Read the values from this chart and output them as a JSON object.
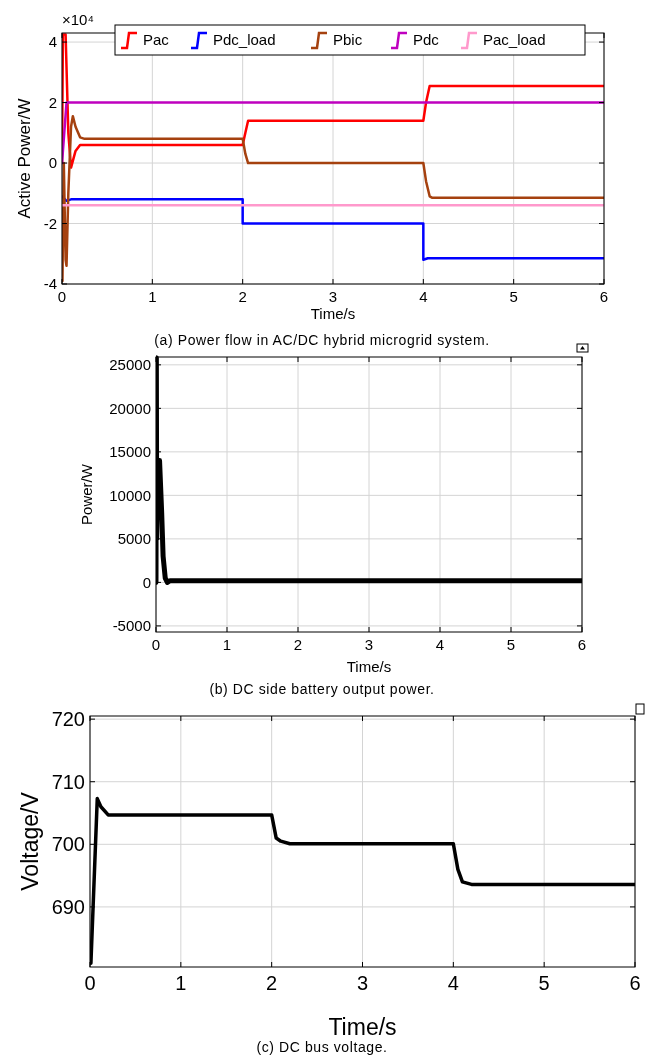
{
  "chart_data": [
    {
      "type": "line",
      "title": "(a) Power flow in AC/DC hybrid microgrid system.",
      "xlabel": "Time/s",
      "ylabel": "Active Power/W",
      "annotations": [
        "×10⁴"
      ],
      "xlim": [
        0,
        6
      ],
      "xticks": [
        0,
        1,
        2,
        3,
        4,
        5,
        6
      ],
      "ylim": [
        -4,
        4.3
      ],
      "yticks": [
        -4,
        -2,
        0,
        2,
        4
      ],
      "grid": true,
      "legend": "top",
      "series": [
        {
          "name": "Pac",
          "color": "#ff0000",
          "x": [
            0,
            0.01,
            0.04,
            0.07,
            0.1,
            0.15,
            0.2,
            0.3,
            2.0,
            2.03,
            2.06,
            4.0,
            4.03,
            4.07,
            6
          ],
          "values": [
            0,
            4.25,
            4.25,
            1,
            -0.15,
            0.4,
            0.6,
            0.6,
            0.6,
            1.0,
            1.4,
            1.4,
            2.0,
            2.55,
            2.55
          ]
        },
        {
          "name": "Pdc_load",
          "color": "#0000ff",
          "x": [
            0,
            0.05,
            0.1,
            2.0,
            2.0,
            4.0,
            4.0,
            4.05,
            6
          ],
          "values": [
            -1.1,
            -1.25,
            -1.2,
            -1.2,
            -2,
            -2,
            -3.2,
            -3.15,
            -3.15
          ]
        },
        {
          "name": "Pbic",
          "color": "#a5410f",
          "x": [
            0.005,
            0.02,
            0.04,
            0.05,
            0.07,
            0.1,
            0.12,
            0.15,
            0.2,
            0.25,
            2.0,
            2.03,
            2.06,
            4.0,
            4.03,
            4.07,
            4.1,
            6
          ],
          "values": [
            -3.9,
            0,
            -3.2,
            -3.4,
            -1,
            1.2,
            1.55,
            1.2,
            0.85,
            0.8,
            0.8,
            0.3,
            0,
            0,
            -0.6,
            -1.1,
            -1.15,
            -1.15
          ]
        },
        {
          "name": "Pdc",
          "color": "#bf00bf",
          "x": [
            0,
            0.05,
            6
          ],
          "values": [
            0,
            2,
            2
          ]
        },
        {
          "name": "Pac_load",
          "color": "#ff99cc",
          "x": [
            0,
            6
          ],
          "values": [
            -1.4,
            -1.4
          ]
        }
      ]
    },
    {
      "type": "line",
      "title": "(b) DC side battery output power.",
      "xlabel": "Time/s",
      "ylabel": "Power/W",
      "xlim": [
        0,
        6
      ],
      "xticks": [
        0,
        1,
        2,
        3,
        4,
        5,
        6
      ],
      "ylim": [
        -5700,
        25900
      ],
      "yticks": [
        -5000,
        0,
        5000,
        10000,
        15000,
        20000,
        25000
      ],
      "grid": true,
      "series": [
        {
          "color": "#000000",
          "x": [
            0,
            0.005,
            0.01,
            0.02,
            0.05,
            0.08,
            0.1,
            0.13,
            0.16,
            0.2,
            6
          ],
          "values": [
            0,
            25800,
            5000,
            14000,
            14000,
            8000,
            3000,
            500,
            0,
            200,
            200
          ]
        }
      ]
    },
    {
      "type": "line",
      "title": "(c) DC bus voltage.",
      "xlabel": "Time/s",
      "ylabel": "Voltage/V",
      "xlim": [
        0,
        6
      ],
      "xticks": [
        0,
        1,
        2,
        3,
        4,
        5,
        6
      ],
      "ylim": [
        680.4,
        720.5
      ],
      "yticks": [
        690,
        700,
        710,
        720
      ],
      "grid": true,
      "series": [
        {
          "color": "#000000",
          "x": [
            0.01,
            0.08,
            0.12,
            0.2,
            2.0,
            2.05,
            2.1,
            2.2,
            4.0,
            4.05,
            4.1,
            4.2,
            6
          ],
          "values": [
            681,
            707.3,
            706,
            704.7,
            704.7,
            701,
            700.5,
            700.1,
            700.1,
            696,
            694,
            693.6,
            693.6
          ]
        }
      ]
    }
  ]
}
